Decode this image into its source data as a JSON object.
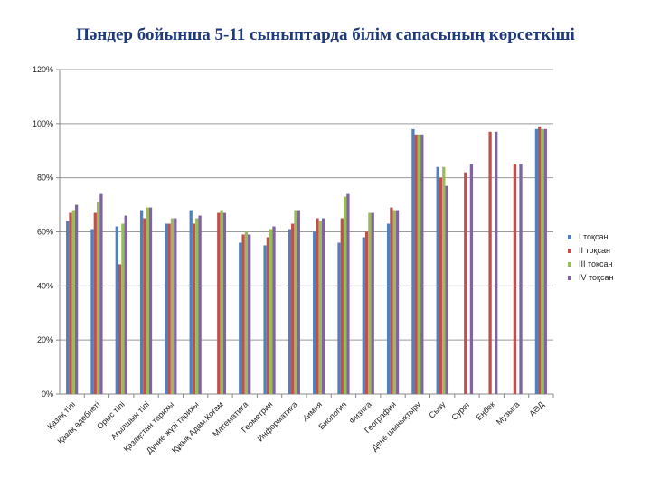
{
  "chart_data": {
    "type": "bar",
    "title": "Пәндер бойынша 5-11 сыныптарда білім сапасының көрсеткіші",
    "xlabel": "",
    "ylabel": "",
    "ylim": [
      0,
      120
    ],
    "yticks": [
      "0%",
      "20%",
      "40%",
      "60%",
      "80%",
      "100%",
      "120%"
    ],
    "grid": true,
    "legend_position": "right",
    "categories": [
      "Қазақ тілі",
      "Қазақ әдебиеті",
      "Орыс тілі",
      "Ағылшын тілі",
      "Қазақстан тарихы",
      "Дүние жүзі тарихы",
      "Құқық Адам.Қоғам",
      "Математика",
      "Геометрия",
      "Информатика",
      "Химия",
      "Биология",
      "Физика",
      "География",
      "Дене шынықтыру",
      "Сызу",
      "Сурет",
      "Еңбек",
      "Музыка",
      "АӘД"
    ],
    "series": [
      {
        "name": "I тоқсан",
        "color": "#4f81bd",
        "values": [
          64,
          61,
          62,
          68,
          63,
          68,
          null,
          56,
          55,
          61,
          60,
          56,
          58,
          63,
          98,
          84,
          null,
          null,
          null,
          98
        ]
      },
      {
        "name": "II тоқсан",
        "color": "#c0504d",
        "values": [
          67,
          67,
          48,
          65,
          63,
          63,
          67,
          59,
          58,
          63,
          65,
          65,
          60,
          69,
          96,
          80,
          82,
          97,
          85,
          99
        ]
      },
      {
        "name": "III тоқсан",
        "color": "#9bbb59",
        "values": [
          68,
          71,
          63,
          69,
          65,
          65,
          68,
          60,
          61,
          68,
          64,
          73,
          67,
          68,
          96,
          84,
          null,
          null,
          null,
          98
        ]
      },
      {
        "name": "IV тоқсан",
        "color": "#8064a2",
        "values": [
          70,
          74,
          66,
          69,
          65,
          66,
          67,
          59,
          62,
          68,
          65,
          74,
          67,
          68,
          96,
          77,
          85,
          97,
          85,
          98
        ]
      }
    ]
  }
}
